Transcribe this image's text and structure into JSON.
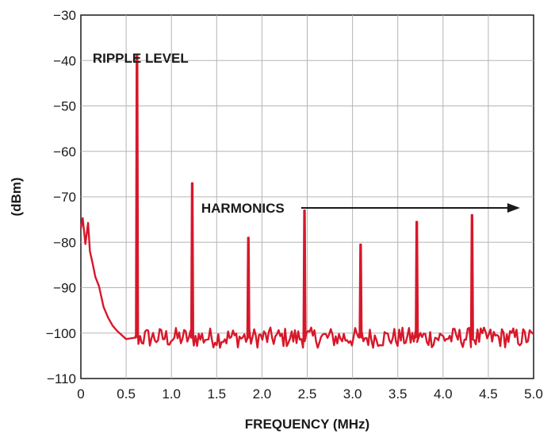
{
  "chart_data": {
    "type": "line",
    "title": "",
    "xlabel": "FREQUENCY (MHz)",
    "ylabel": "(dBm)",
    "xlim": [
      0,
      5.0
    ],
    "ylim": [
      -110,
      -30
    ],
    "x_ticks": [
      "0",
      "0.5",
      "1.0",
      "1.5",
      "2.0",
      "2.5",
      "3.0",
      "3.5",
      "4.0",
      "4.5",
      "5.0"
    ],
    "y_ticks": [
      "−30",
      "−40",
      "−50",
      "−60",
      "−70",
      "−80",
      "−90",
      "−100",
      "−110"
    ],
    "grid": true,
    "line_color": "#d7182a",
    "noise_floor": -101,
    "series": [
      {
        "name": "",
        "x": [
          0,
          0.02,
          0.05,
          0.08,
          0.1,
          0.13,
          0.16,
          0.2,
          0.25,
          0.3,
          0.35,
          0.4,
          0.5,
          0.6
        ],
        "y": [
          -77,
          -75,
          -80,
          -76,
          -83,
          -85,
          -88,
          -89,
          -95,
          -97,
          -99,
          -100,
          -101,
          -101
        ]
      }
    ],
    "peaks": [
      {
        "x": 0.62,
        "y": -43
      },
      {
        "x": 1.23,
        "y": -71
      },
      {
        "x": 1.85,
        "y": -83
      },
      {
        "x": 2.47,
        "y": -77
      },
      {
        "x": 3.09,
        "y": -84.5
      },
      {
        "x": 3.71,
        "y": -79.5
      },
      {
        "x": 4.32,
        "y": -78
      }
    ],
    "annotations": [
      {
        "text": "RIPPLE LEVEL",
        "x": 0.13,
        "y": -40.5
      },
      {
        "text": "HARMONICS",
        "x": 1.33,
        "y": -73.5,
        "arrow_to_x": 4.85
      }
    ]
  }
}
